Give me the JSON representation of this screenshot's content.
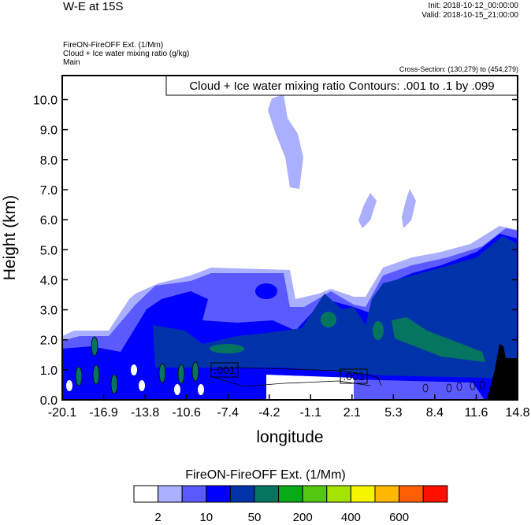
{
  "header": {
    "title": "W-E at 15S",
    "init": "Init: 2018-10-12_00:00:00",
    "valid": "Valid: 2018-10-15_21:00:00",
    "subtitles": [
      "FireON-FireOFF Ext.   (1/Mm)",
      "Cloud + Ice water mixing ratio   (g/kg)",
      "Main"
    ],
    "cross_section": "Cross-Section: (130,279) to (454,279)"
  },
  "chart_data": {
    "type": "heatmap",
    "title": "W-E at 15S",
    "xlabel": "longitude",
    "ylabel": "Height (km)",
    "xlim": [
      -20.1,
      14.8
    ],
    "ylim": [
      0,
      10.8
    ],
    "xticks": [
      "-20.1",
      "-16.9",
      "-13.8",
      "-10.6",
      "-7.4",
      "-4.2",
      "-1.1",
      "2.1",
      "5.3",
      "8.4",
      "11.6",
      "14.8"
    ],
    "yticks": [
      "0.0",
      "1.0",
      "2.0",
      "3.0",
      "4.0",
      "5.0",
      "6.0",
      "7.0",
      "8.0",
      "9.0",
      "10.0"
    ],
    "fill_variable": "FireON-FireOFF Ext.  (1/Mm)",
    "contour_variable": "Cloud + Ice water mixing ratio (g/kg)",
    "contour_info": "Cloud + Ice water mixing ratio Contours: .001 to .1 by .099",
    "contour_labels": [
      ".001",
      ".001"
    ],
    "colorbar": {
      "title": "FireON-FireOFF Ext.  (1/Mm)",
      "colors": [
        "#ffffff",
        "#aab0ff",
        "#5a5aff",
        "#0000ff",
        "#0033aa",
        "#057560",
        "#05aa17",
        "#52c810",
        "#a5e300",
        "#f5f500",
        "#ffb700",
        "#ff5f00",
        "#ff1000"
      ],
      "labels": [
        "2",
        "10",
        "50",
        "200",
        "400",
        "600"
      ]
    }
  }
}
